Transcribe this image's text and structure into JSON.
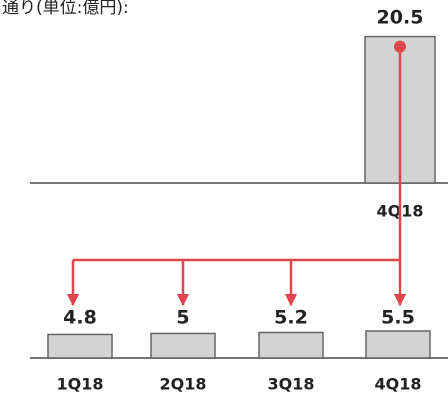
{
  "title": "通り(単位:億円):",
  "chart_data": [
    {
      "type": "bar",
      "categories": [
        "4Q18"
      ],
      "values": [
        20.5
      ],
      "color": "#d3d3d3",
      "ylim": [
        0,
        21
      ]
    },
    {
      "type": "bar",
      "categories": [
        "1Q18",
        "2Q18",
        "3Q18",
        "4Q18"
      ],
      "values": [
        4.8,
        5.0,
        5.2,
        5.5
      ],
      "color": "#d3d3d3",
      "ylim": [
        0,
        5.5
      ]
    }
  ]
}
